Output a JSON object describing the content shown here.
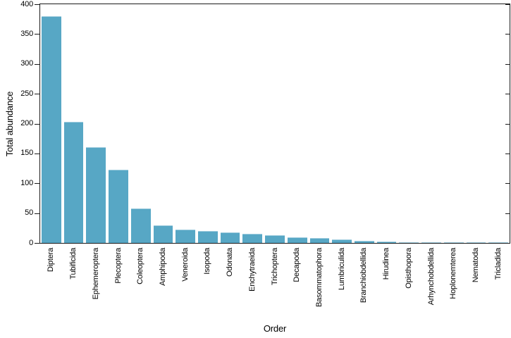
{
  "chart_data": {
    "type": "bar",
    "title": "",
    "xlabel": "Order",
    "ylabel": "Total abundance",
    "ylim": [
      0,
      400
    ],
    "yticks": [
      0,
      50,
      100,
      150,
      200,
      250,
      300,
      350,
      400
    ],
    "grid": false,
    "frame": "full-box",
    "legend": "none",
    "bar_color": "#57a7c5",
    "axis_color": "#1a1a1a",
    "background_color": "#ffffff",
    "categories": [
      "Diptera",
      "Tubificida",
      "Ephemeroptera",
      "Plecoptera",
      "Coleoptera",
      "Amphipoda",
      "Veneroida",
      "Isopoda",
      "Odonata",
      "Enchytraeida",
      "Trichoptera",
      "Decapoda",
      "Basommatophora",
      "Lumbriculida",
      "Branchiobdellida",
      "Hirudinea",
      "Opisthopora",
      "Arhynchobdellida",
      "Hoplonemterea",
      "Nematoda",
      "Tricladida"
    ],
    "values": [
      380,
      203,
      160,
      123,
      58,
      29,
      23,
      20,
      18,
      15,
      13,
      10,
      8,
      6,
      3,
      2,
      1,
      1,
      1,
      1,
      1
    ]
  }
}
